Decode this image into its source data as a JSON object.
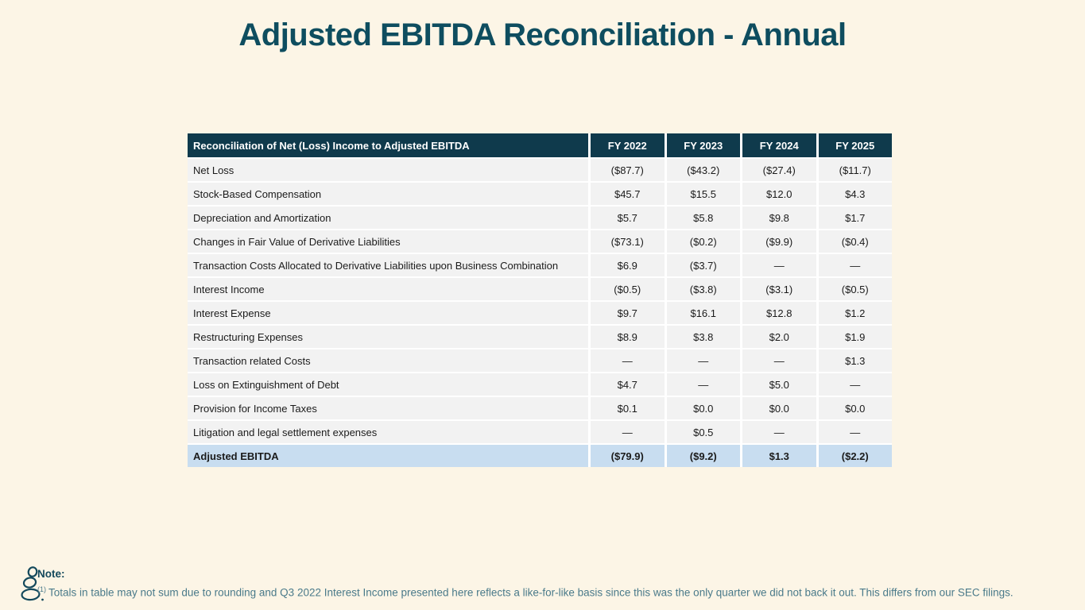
{
  "title": "Adjusted EBITDA Reconciliation - Annual",
  "table": {
    "header": {
      "label": "Reconciliation of Net (Loss) Income to Adjusted EBITDA",
      "columns": [
        "FY 2022",
        "FY 2023",
        "FY 2024",
        "FY 2025"
      ]
    },
    "rows": [
      {
        "label": "Net Loss",
        "values": [
          "($87.7)",
          "($43.2)",
          "($27.4)",
          "($11.7)"
        ]
      },
      {
        "label": "Stock-Based Compensation",
        "values": [
          "$45.7",
          "$15.5",
          "$12.0",
          "$4.3"
        ]
      },
      {
        "label": "Depreciation and Amortization",
        "values": [
          "$5.7",
          "$5.8",
          "$9.8",
          "$1.7"
        ]
      },
      {
        "label": "Changes in Fair Value of Derivative Liabilities",
        "values": [
          "($73.1)",
          "($0.2)",
          "($9.9)",
          "($0.4)"
        ]
      },
      {
        "label": "Transaction Costs Allocated to Derivative Liabilities upon Business Combination",
        "values": [
          "$6.9",
          "($3.7)",
          "—",
          "—"
        ]
      },
      {
        "label": "Interest Income",
        "values": [
          "($0.5)",
          "($3.8)",
          "($3.1)",
          "($0.5)"
        ]
      },
      {
        "label": "Interest Expense",
        "values": [
          "$9.7",
          "$16.1",
          "$12.8",
          "$1.2"
        ]
      },
      {
        "label": "Restructuring Expenses",
        "values": [
          "$8.9",
          "$3.8",
          "$2.0",
          "$1.9"
        ]
      },
      {
        "label": "Transaction related Costs",
        "values": [
          "—",
          "—",
          "—",
          "$1.3"
        ]
      },
      {
        "label": "Loss on Extinguishment of Debt",
        "values": [
          "$4.7",
          "—",
          "$5.0",
          "—"
        ]
      },
      {
        "label": "Provision for Income Taxes",
        "values": [
          "$0.1",
          "$0.0",
          "$0.0",
          "$0.0"
        ]
      },
      {
        "label": "Litigation and legal settlement expenses",
        "values": [
          "—",
          "$0.5",
          "—",
          "—"
        ]
      }
    ],
    "total_row": {
      "label": "Adjusted EBITDA",
      "values": [
        "($79.9)",
        "($9.2)",
        "$1.3",
        "($2.2)"
      ]
    }
  },
  "note": {
    "label": "Note:",
    "superscript": "(1)",
    "text": "Totals in table may not sum due to rounding and Q3 2022 Interest Income presented here reflects a like-for-like basis since this was the only quarter we did not back it out. This differs from our SEC filings."
  },
  "colors": {
    "background": "#FCF5E6",
    "title_teal": "#0E4D5F",
    "header_bg": "#0F3A4C",
    "header_text": "#FFFFFF",
    "row_bg": "#F2F2F2",
    "total_row_bg": "#C8DDF0",
    "note_text": "#4A7A8A",
    "note_accent": "#14495C"
  }
}
